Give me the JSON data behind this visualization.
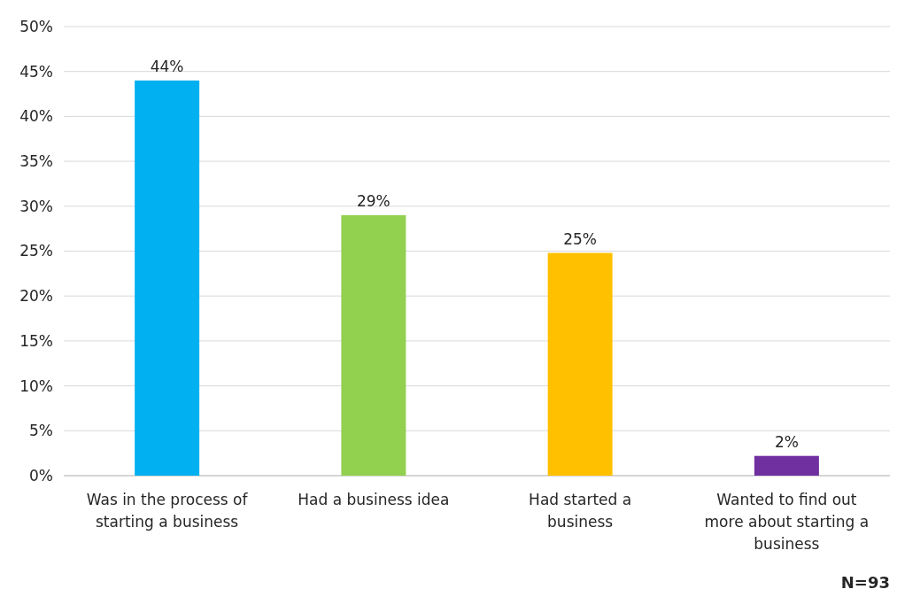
{
  "chart_data": {
    "type": "bar",
    "categories": [
      "Was in the process of starting a business",
      "Had a business idea",
      "Had started a business",
      "Wanted to find out more about starting a business"
    ],
    "values": [
      44,
      29,
      24.8,
      2.2
    ],
    "value_labels": [
      "44%",
      "29%",
      "25%",
      "2%"
    ],
    "colors": [
      "#00b0f0",
      "#92d050",
      "#ffc000",
      "#7030a0"
    ],
    "ylim": [
      0,
      50
    ],
    "yticks": [
      {
        "value": 0,
        "label": "0%"
      },
      {
        "value": 5,
        "label": "5%"
      },
      {
        "value": 10,
        "label": "10%"
      },
      {
        "value": 15,
        "label": "15%"
      },
      {
        "value": 20,
        "label": "20%"
      },
      {
        "value": 25,
        "label": "25%"
      },
      {
        "value": 30,
        "label": "30%"
      },
      {
        "value": 35,
        "label": "35%"
      },
      {
        "value": 40,
        "label": "40%"
      },
      {
        "value": 45,
        "label": "45%"
      },
      {
        "value": 50,
        "label": "50%"
      }
    ],
    "grid": "y",
    "annotations": [
      "N=93"
    ]
  }
}
